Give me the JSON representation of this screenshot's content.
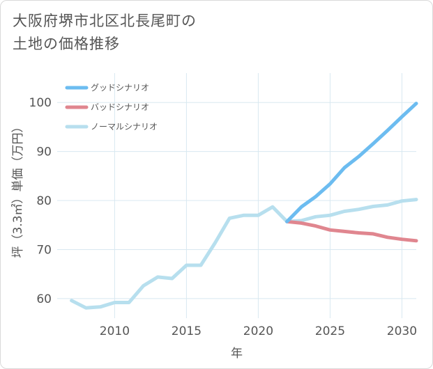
{
  "title": {
    "line1": "大阪府堺市北区北長尾町の",
    "line2": "土地の価格推移"
  },
  "colors": {
    "good": "#6cbcf0",
    "bad": "#e0868f",
    "normal": "#b7dfee",
    "grid": "#d8e8f0",
    "plot_bg": "#ffffff"
  },
  "chart_data": {
    "type": "line",
    "title": "大阪府堺市北区北長尾町の土地の価格推移",
    "xlabel": "年",
    "ylabel": "坪（3.3㎡）単価（万円）",
    "xlim": [
      2006,
      2031
    ],
    "ylim": [
      56,
      106
    ],
    "xticks": [
      2010,
      2015,
      2020,
      2025,
      2030
    ],
    "yticks": [
      60,
      70,
      80,
      90,
      100
    ],
    "grid": true,
    "legend_position": "top-left",
    "series": [
      {
        "name": "グッドシナリオ",
        "color": "#6cbcf0",
        "x": [
          2022,
          2023,
          2024,
          2025,
          2026,
          2027,
          2028,
          2029,
          2030,
          2031
        ],
        "y": [
          75.7,
          78.7,
          80.8,
          83.4,
          86.7,
          89.0,
          91.6,
          94.3,
          97.1,
          99.8
        ]
      },
      {
        "name": "バッドシナリオ",
        "color": "#e0868f",
        "x": [
          2022,
          2023,
          2024,
          2025,
          2026,
          2027,
          2028,
          2029,
          2030,
          2031
        ],
        "y": [
          75.7,
          75.4,
          74.8,
          74.0,
          73.7,
          73.4,
          73.2,
          72.5,
          72.1,
          71.8
        ]
      },
      {
        "name": "ノーマルシナリオ",
        "color": "#b7dfee",
        "x": [
          2007,
          2008,
          2009,
          2010,
          2011,
          2012,
          2013,
          2014,
          2015,
          2016,
          2017,
          2018,
          2019,
          2020,
          2021,
          2022,
          2023,
          2024,
          2025,
          2026,
          2027,
          2028,
          2029,
          2030,
          2031
        ],
        "y": [
          59.6,
          58.1,
          58.3,
          59.2,
          59.2,
          62.6,
          64.4,
          64.1,
          66.8,
          66.8,
          71.4,
          76.4,
          77.0,
          77.0,
          78.7,
          75.7,
          75.9,
          76.7,
          77.0,
          77.8,
          78.2,
          78.8,
          79.1,
          79.9,
          80.2
        ]
      }
    ]
  }
}
